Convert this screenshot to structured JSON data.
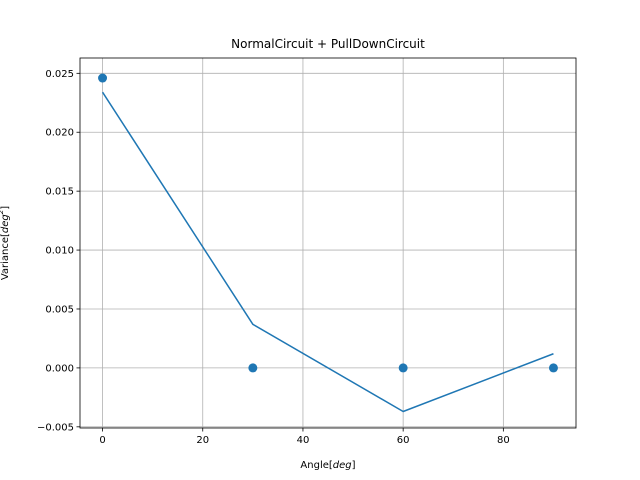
{
  "chart_data": {
    "type": "line",
    "title": "NormalCircuit + PullDownCircuit",
    "xlabel_text": "Angle",
    "xlabel_unit": "deg",
    "ylabel_text": "Variance",
    "ylabel_unit": "deg",
    "ylabel_exponent": "2",
    "xlim": [
      -4.5,
      94.5
    ],
    "ylim": [
      -0.0051,
      0.0263
    ],
    "grid": true,
    "x_ticks": [
      0,
      20,
      40,
      60,
      80
    ],
    "x_tick_labels": [
      "0",
      "20",
      "40",
      "60",
      "80"
    ],
    "y_ticks": [
      -0.005,
      0.0,
      0.005,
      0.01,
      0.015,
      0.02,
      0.025
    ],
    "y_tick_labels": [
      "−0.005",
      "0.000",
      "0.005",
      "0.010",
      "0.015",
      "0.020",
      "0.025"
    ],
    "series": [
      {
        "kind": "scatter",
        "color": "#1f77b4",
        "x": [
          0,
          30,
          60,
          90
        ],
        "y": [
          0.0246,
          0.0,
          0.0,
          0.0
        ]
      },
      {
        "kind": "line",
        "color": "#1f77b4",
        "x": [
          0,
          30,
          60,
          90
        ],
        "y": [
          0.0234,
          0.0037,
          -0.0037,
          0.0012
        ]
      }
    ]
  }
}
